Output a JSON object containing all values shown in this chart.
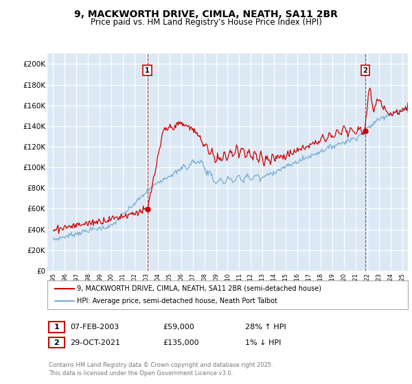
{
  "title": "9, MACKWORTH DRIVE, CIMLA, NEATH, SA11 2BR",
  "subtitle": "Price paid vs. HM Land Registry's House Price Index (HPI)",
  "ylabel_ticks": [
    0,
    20000,
    40000,
    60000,
    80000,
    100000,
    120000,
    140000,
    160000,
    180000,
    200000
  ],
  "ylabel_labels": [
    "£0",
    "£20K",
    "£40K",
    "£60K",
    "£80K",
    "£100K",
    "£120K",
    "£140K",
    "£160K",
    "£180K",
    "£200K"
  ],
  "xlim": [
    1994.5,
    2025.5
  ],
  "ylim": [
    0,
    210000
  ],
  "sale1_date": "07-FEB-2003",
  "sale1_price": 59000,
  "sale1_price_str": "£59,000",
  "sale1_pct": "28% ↑ HPI",
  "sale2_date": "29-OCT-2021",
  "sale2_price": 135000,
  "sale2_price_str": "£135,000",
  "sale2_pct": "1% ↓ HPI",
  "sale1_year": 2003.1,
  "sale2_year": 2021.83,
  "line_color_red": "#cc0000",
  "line_color_blue": "#7aadd4",
  "bg_color": "#dce9f5",
  "grid_color": "#ffffff",
  "legend_label_red": "9, MACKWORTH DRIVE, CIMLA, NEATH, SA11 2BR (semi-detached house)",
  "legend_label_blue": "HPI: Average price, semi-detached house, Neath Port Talbot",
  "footer": "Contains HM Land Registry data © Crown copyright and database right 2025.\nThis data is licensed under the Open Government Licence v3.0."
}
